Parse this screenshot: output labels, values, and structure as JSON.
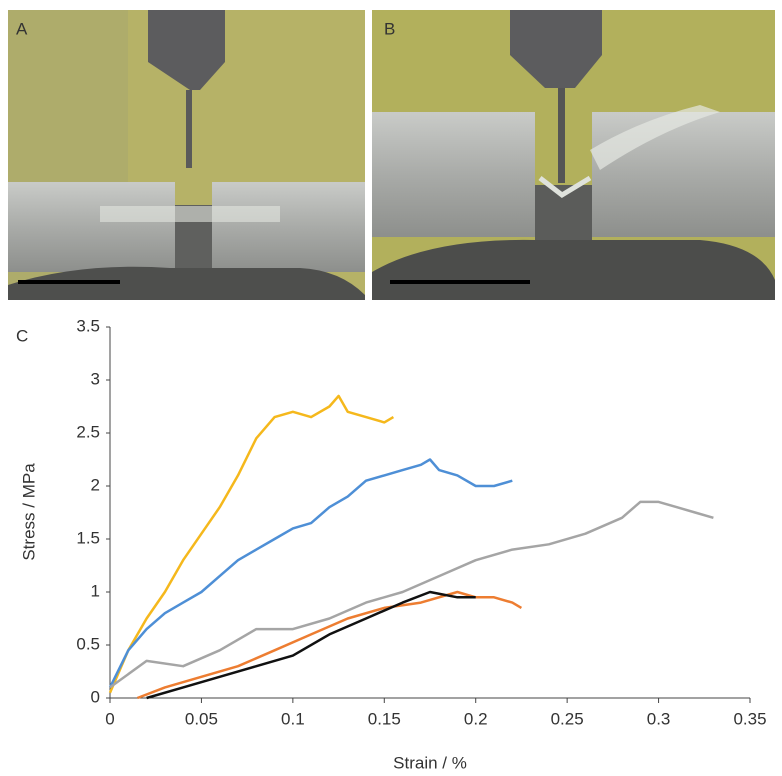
{
  "panel_labels": [
    "A",
    "B",
    "C"
  ],
  "chart_data": {
    "type": "line",
    "xlabel": "Strain / %",
    "ylabel": "Stress / MPa",
    "xlim": [
      0,
      0.35
    ],
    "xticks": [
      0,
      0.05,
      0.1,
      0.15,
      0.2,
      0.25,
      0.3,
      0.35
    ],
    "ylim": [
      0,
      3.5
    ],
    "yticks": [
      0,
      0.5,
      1,
      1.5,
      2,
      2.5,
      3,
      3.5
    ],
    "grid": false,
    "series": [
      {
        "color": "#f5b81c",
        "x": [
          0,
          0.01,
          0.02,
          0.03,
          0.04,
          0.05,
          0.06,
          0.07,
          0.08,
          0.09,
          0.1,
          0.11,
          0.12,
          0.125,
          0.13,
          0.14,
          0.15,
          0.155
        ],
        "values": [
          0.05,
          0.45,
          0.75,
          1.0,
          1.3,
          1.55,
          1.8,
          2.1,
          2.45,
          2.65,
          2.7,
          2.65,
          2.75,
          2.85,
          2.7,
          2.65,
          2.6,
          2.65
        ]
      },
      {
        "color": "#4e8fd6",
        "x": [
          0,
          0.01,
          0.02,
          0.03,
          0.04,
          0.05,
          0.06,
          0.07,
          0.08,
          0.09,
          0.1,
          0.11,
          0.12,
          0.13,
          0.14,
          0.15,
          0.16,
          0.17,
          0.175,
          0.18,
          0.19,
          0.2,
          0.21,
          0.22
        ],
        "values": [
          0.1,
          0.45,
          0.65,
          0.8,
          0.9,
          1.0,
          1.15,
          1.3,
          1.4,
          1.5,
          1.6,
          1.65,
          1.8,
          1.9,
          2.05,
          2.1,
          2.15,
          2.2,
          2.25,
          2.15,
          2.1,
          2.0,
          2.0,
          2.05
        ]
      },
      {
        "color": "#a5a5a5",
        "x": [
          0,
          0.02,
          0.04,
          0.06,
          0.08,
          0.1,
          0.12,
          0.14,
          0.16,
          0.18,
          0.2,
          0.22,
          0.24,
          0.26,
          0.28,
          0.29,
          0.3,
          0.31,
          0.32,
          0.33
        ],
        "values": [
          0.1,
          0.35,
          0.3,
          0.45,
          0.65,
          0.65,
          0.75,
          0.9,
          1.0,
          1.15,
          1.3,
          1.4,
          1.45,
          1.55,
          1.7,
          1.85,
          1.85,
          1.8,
          1.75,
          1.7
        ]
      },
      {
        "color": "#ed7d31",
        "x": [
          0.015,
          0.03,
          0.05,
          0.07,
          0.09,
          0.11,
          0.13,
          0.15,
          0.17,
          0.19,
          0.2,
          0.21,
          0.22,
          0.225
        ],
        "values": [
          0,
          0.1,
          0.2,
          0.3,
          0.45,
          0.6,
          0.75,
          0.85,
          0.9,
          1.0,
          0.95,
          0.95,
          0.9,
          0.85
        ]
      },
      {
        "color": "#111111",
        "x": [
          0.02,
          0.04,
          0.06,
          0.08,
          0.1,
          0.12,
          0.14,
          0.16,
          0.175,
          0.19,
          0.2
        ],
        "values": [
          0,
          0.1,
          0.2,
          0.3,
          0.4,
          0.6,
          0.75,
          0.9,
          1.0,
          0.95,
          0.95
        ]
      }
    ]
  }
}
